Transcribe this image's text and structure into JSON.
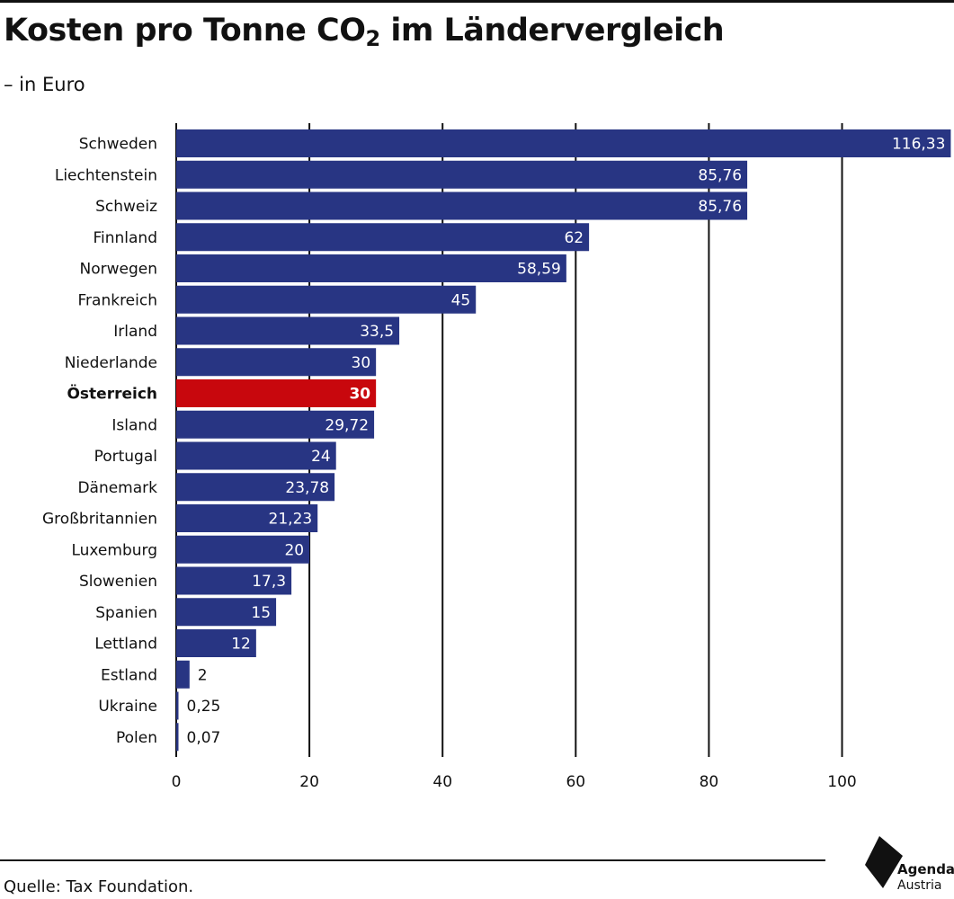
{
  "title": {
    "main": "Kosten pro Tonne CO",
    "subscript": "2",
    "rest": " im Ländervergleich"
  },
  "subtitle": "– in Euro",
  "source": "Quelle: Tax Foundation.",
  "logo": {
    "line1": "Agenda",
    "line2": "Austria"
  },
  "colors": {
    "bar": "#283583",
    "highlight": "#c8070d",
    "grid": "#111111"
  },
  "chart_data": {
    "type": "bar",
    "orientation": "horizontal",
    "categories": [
      "Schweden",
      "Liechtenstein",
      "Schweiz",
      "Finnland",
      "Norwegen",
      "Frankreich",
      "Irland",
      "Niederlande",
      "Österreich",
      "Island",
      "Portugal",
      "Dänemark",
      "Großbritannien",
      "Luxemburg",
      "Slowenien",
      "Spanien",
      "Lettland",
      "Estland",
      "Ukraine",
      "Polen"
    ],
    "values": [
      116.33,
      85.76,
      85.76,
      62,
      58.59,
      45,
      33.5,
      30,
      30,
      29.72,
      24,
      23.78,
      21.23,
      20,
      17.3,
      15,
      12,
      2,
      0.25,
      0.07
    ],
    "value_labels": [
      "116,33",
      "85,76",
      "85,76",
      "62",
      "58,59",
      "45",
      "33,5",
      "30",
      "30",
      "29,72",
      "24",
      "23,78",
      "21,23",
      "20",
      "17,3",
      "15",
      "12",
      "2",
      "0,25",
      "0,07"
    ],
    "highlight": "Österreich",
    "xlim": [
      0,
      116.33
    ],
    "xticks": [
      0,
      20,
      40,
      60,
      80,
      100
    ],
    "grid": true
  }
}
